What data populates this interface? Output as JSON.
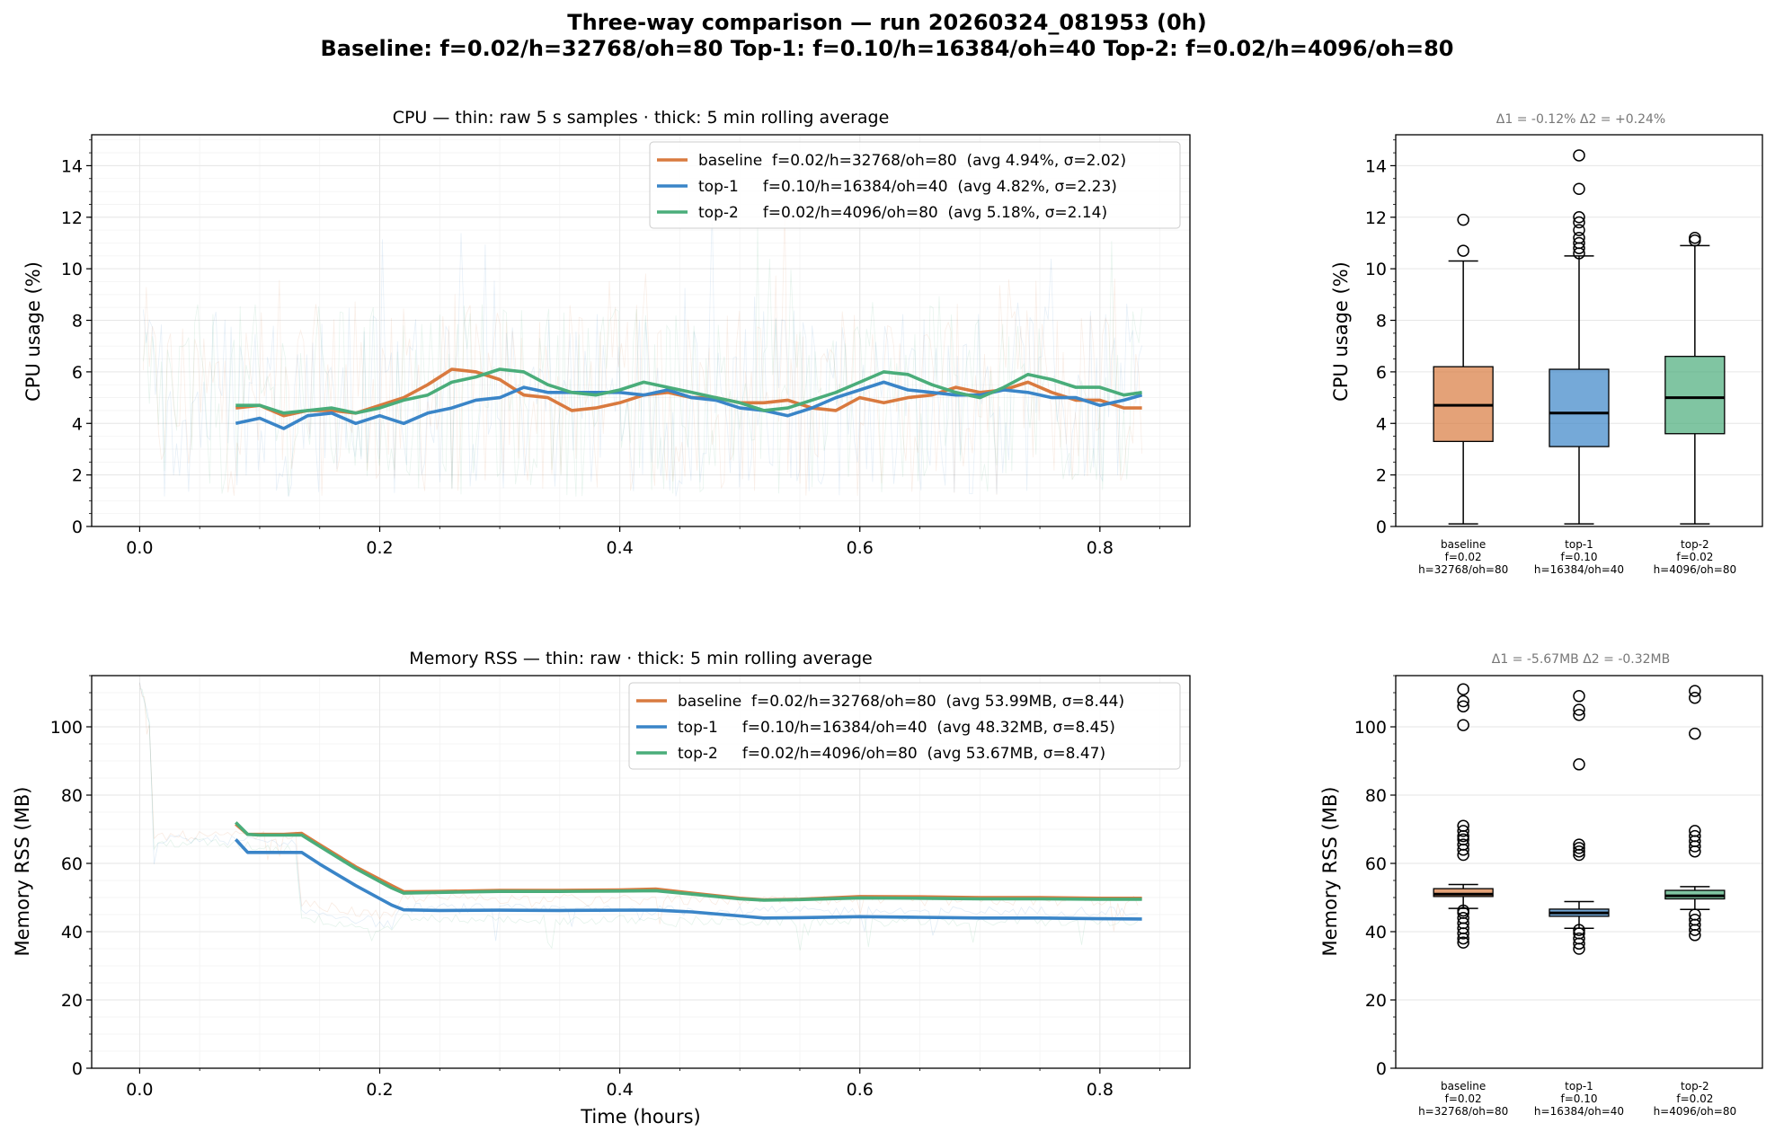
{
  "figure": {
    "title_line1": "Three-way comparison — run 20260324_081953  (0h)",
    "title_line2": "Baseline: f=0.02/h=32768/oh=80    Top-1: f=0.10/h=16384/oh=40    Top-2: f=0.02/h=4096/oh=80"
  },
  "colors": {
    "baseline": "#d97a3f",
    "top1": "#3a85c8",
    "top2": "#4aad7a"
  },
  "chart_data": [
    {
      "id": "cpu_timeseries",
      "type": "line",
      "title": "CPU — thin: raw 5 s samples · thick: 5 min rolling average",
      "xlabel": "",
      "ylabel": "CPU usage (%)",
      "xlim": [
        -0.04,
        0.875
      ],
      "ylim": [
        0,
        15.2
      ],
      "xticks": [
        "0.0",
        "0.2",
        "0.4",
        "0.6",
        "0.8"
      ],
      "yticks": [
        "0",
        "2",
        "4",
        "6",
        "8",
        "10",
        "12",
        "14"
      ],
      "x": [
        0.08,
        0.1,
        0.12,
        0.14,
        0.16,
        0.18,
        0.2,
        0.22,
        0.24,
        0.26,
        0.28,
        0.3,
        0.32,
        0.34,
        0.36,
        0.38,
        0.4,
        0.42,
        0.44,
        0.46,
        0.48,
        0.5,
        0.52,
        0.54,
        0.56,
        0.58,
        0.6,
        0.62,
        0.64,
        0.66,
        0.68,
        0.7,
        0.72,
        0.74,
        0.76,
        0.78,
        0.8,
        0.82,
        0.835
      ],
      "series": [
        {
          "name": "baseline",
          "legend": "baseline  f=0.02/h=32768/oh=80  (avg 4.94%, σ=2.02)",
          "values": [
            4.6,
            4.7,
            4.3,
            4.5,
            4.5,
            4.4,
            4.7,
            5.0,
            5.5,
            6.1,
            6.0,
            5.7,
            5.1,
            5.0,
            4.5,
            4.6,
            4.8,
            5.1,
            5.2,
            5.0,
            5.0,
            4.8,
            4.8,
            4.9,
            4.6,
            4.5,
            5.0,
            4.8,
            5.0,
            5.1,
            5.4,
            5.2,
            5.3,
            5.6,
            5.2,
            4.9,
            4.9,
            4.6,
            4.6
          ]
        },
        {
          "name": "top-1",
          "legend": "top-1     f=0.10/h=16384/oh=40  (avg 4.82%, σ=2.23)",
          "values": [
            4.0,
            4.2,
            3.8,
            4.3,
            4.4,
            4.0,
            4.3,
            4.0,
            4.4,
            4.6,
            4.9,
            5.0,
            5.4,
            5.2,
            5.2,
            5.2,
            5.2,
            5.1,
            5.3,
            5.0,
            4.9,
            4.6,
            4.5,
            4.3,
            4.6,
            5.0,
            5.3,
            5.6,
            5.3,
            5.2,
            5.1,
            5.1,
            5.3,
            5.2,
            5.0,
            5.0,
            4.7,
            4.9,
            5.1
          ]
        },
        {
          "name": "top-2",
          "legend": "top-2     f=0.02/h=4096/oh=80  (avg 5.18%, σ=2.14)",
          "values": [
            4.7,
            4.7,
            4.4,
            4.5,
            4.6,
            4.4,
            4.6,
            4.9,
            5.1,
            5.6,
            5.8,
            6.1,
            6.0,
            5.5,
            5.2,
            5.1,
            5.3,
            5.6,
            5.4,
            5.2,
            5.0,
            4.8,
            4.5,
            4.6,
            4.9,
            5.2,
            5.6,
            6.0,
            5.9,
            5.5,
            5.2,
            5.0,
            5.4,
            5.9,
            5.7,
            5.4,
            5.4,
            5.1,
            5.2
          ]
        }
      ]
    },
    {
      "id": "cpu_box",
      "type": "box",
      "title": "Δ1 = -0.12%  Δ2 = +0.24%",
      "ylabel": "CPU usage (%)",
      "ylim": [
        0,
        15.2
      ],
      "yticks": [
        "0",
        "2",
        "4",
        "6",
        "8",
        "10",
        "12",
        "14"
      ],
      "categories": [
        [
          "baseline",
          "f=0.02",
          "h=32768/oh=80"
        ],
        [
          "top-1",
          "f=0.10",
          "h=16384/oh=40"
        ],
        [
          "top-2",
          "f=0.02",
          "h=4096/oh=80"
        ]
      ],
      "boxes": [
        {
          "whislo": 0.1,
          "q1": 3.3,
          "med": 4.7,
          "q3": 6.2,
          "whishi": 10.3,
          "fliers": [
            10.7,
            11.9
          ]
        },
        {
          "whislo": 0.1,
          "q1": 3.1,
          "med": 4.4,
          "q3": 6.1,
          "whishi": 10.5,
          "fliers": [
            10.6,
            10.8,
            11.0,
            11.2,
            11.5,
            11.8,
            12.0,
            13.1,
            14.4
          ]
        },
        {
          "whislo": 0.1,
          "q1": 3.6,
          "med": 5.0,
          "q3": 6.6,
          "whishi": 10.9,
          "fliers": [
            11.1,
            11.2
          ]
        }
      ]
    },
    {
      "id": "mem_timeseries",
      "type": "line",
      "title": "Memory RSS — thin: raw · thick: 5 min rolling average",
      "xlabel": "Time (hours)",
      "ylabel": "Memory RSS (MB)",
      "xlim": [
        -0.04,
        0.875
      ],
      "ylim": [
        0,
        115
      ],
      "xticks": [
        "0.0",
        "0.2",
        "0.4",
        "0.6",
        "0.8"
      ],
      "yticks": [
        "0",
        "20",
        "40",
        "60",
        "80",
        "100"
      ],
      "x": [
        0.08,
        0.09,
        0.1,
        0.12,
        0.135,
        0.15,
        0.18,
        0.21,
        0.22,
        0.25,
        0.3,
        0.35,
        0.4,
        0.43,
        0.46,
        0.5,
        0.52,
        0.55,
        0.6,
        0.65,
        0.7,
        0.75,
        0.8,
        0.835
      ],
      "series": [
        {
          "name": "baseline",
          "legend": "baseline  f=0.02/h=32768/oh=80  (avg 53.99MB, σ=8.44)",
          "values": [
            71.5,
            68.5,
            68.5,
            68.5,
            68.8,
            65.5,
            59.0,
            53.5,
            51.7,
            51.8,
            52.1,
            52.1,
            52.2,
            52.5,
            51.3,
            49.8,
            49.3,
            49.5,
            50.3,
            50.2,
            50.0,
            50.0,
            49.8,
            49.8
          ]
        },
        {
          "name": "top-1",
          "legend": "top-1     f=0.10/h=16384/oh=40  (avg 48.32MB, σ=8.45)",
          "values": [
            67.0,
            63.2,
            63.2,
            63.2,
            63.2,
            59.8,
            53.5,
            47.8,
            46.4,
            46.2,
            46.3,
            46.2,
            46.3,
            46.3,
            45.8,
            44.6,
            44.0,
            44.1,
            44.4,
            44.2,
            44.0,
            44.0,
            43.8,
            43.7
          ]
        },
        {
          "name": "top-2",
          "legend": "top-2     f=0.02/h=4096/oh=80  (avg 53.67MB, σ=8.47)",
          "values": [
            72.0,
            68.5,
            68.3,
            68.3,
            68.3,
            65.0,
            58.5,
            52.8,
            51.3,
            51.5,
            51.8,
            51.8,
            51.9,
            52.0,
            51.0,
            49.6,
            49.2,
            49.4,
            49.9,
            49.8,
            49.6,
            49.6,
            49.5,
            49.5
          ]
        }
      ]
    },
    {
      "id": "mem_box",
      "type": "box",
      "title": "Δ1 = -5.67MB  Δ2 = -0.32MB",
      "ylabel": "Memory RSS (MB)",
      "ylim": [
        0,
        115
      ],
      "yticks": [
        "0",
        "20",
        "40",
        "60",
        "80",
        "100"
      ],
      "categories": [
        [
          "baseline",
          "f=0.02",
          "h=32768/oh=80"
        ],
        [
          "top-1",
          "f=0.10",
          "h=16384/oh=40"
        ],
        [
          "top-2",
          "f=0.02",
          "h=4096/oh=80"
        ]
      ],
      "boxes": [
        {
          "whislo": 46.8,
          "q1": 50.3,
          "med": 51.0,
          "q3": 52.6,
          "whishi": 53.8,
          "fliers": [
            36.8,
            38.0,
            39.5,
            41.0,
            42.5,
            44.0,
            45.5,
            46.2,
            62.5,
            64.0,
            65.5,
            67.0,
            68.0,
            69.5,
            71.0,
            100.5,
            106.0,
            107.5,
            111.0
          ]
        },
        {
          "whislo": 41.0,
          "q1": 44.5,
          "med": 45.5,
          "q3": 46.6,
          "whishi": 48.8,
          "fliers": [
            35.0,
            36.5,
            38.0,
            39.5,
            40.5,
            62.5,
            63.5,
            64.5,
            65.5,
            89.0,
            103.5,
            105.0,
            109.0
          ]
        },
        {
          "whislo": 46.5,
          "q1": 49.6,
          "med": 50.5,
          "q3": 52.1,
          "whishi": 53.2,
          "fliers": [
            39.0,
            40.5,
            42.0,
            43.5,
            45.0,
            63.5,
            65.0,
            66.5,
            68.0,
            69.5,
            98.0,
            108.5,
            110.5
          ]
        }
      ]
    }
  ]
}
